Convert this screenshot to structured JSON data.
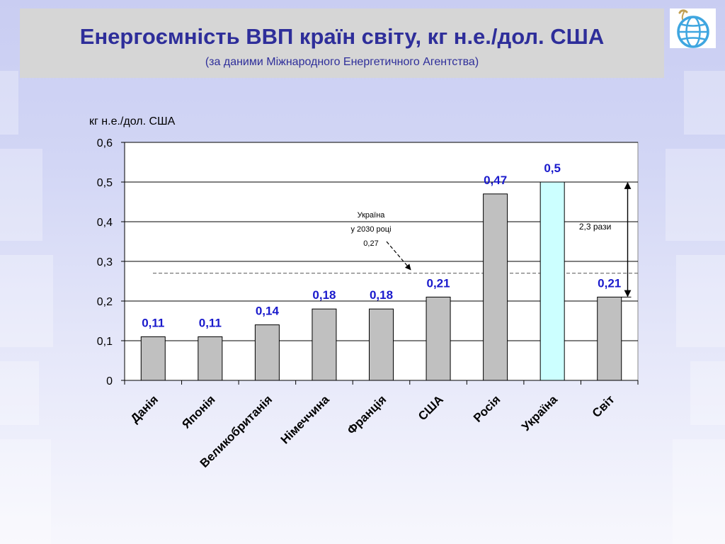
{
  "slide": {
    "title": "Енергоємність ВВП країн світу, кг н.е./дол. США",
    "subtitle": "(за даними Міжнародного Енергетичного Агентства)"
  },
  "logo": {
    "icon": "globe-icon",
    "colors": {
      "globe": "#3fa6e0",
      "leaf": "#c2a052"
    }
  },
  "chart_data": {
    "type": "bar",
    "title": "",
    "ylabel": "кг н.е./дол. США",
    "xlabel": "",
    "categories": [
      "Данія",
      "Японія",
      "Великобританія",
      "Німеччина",
      "Франція",
      "США",
      "Росія",
      "Україна",
      "Світ"
    ],
    "values": [
      0.11,
      0.11,
      0.14,
      0.18,
      0.18,
      0.21,
      0.47,
      0.5,
      0.21
    ],
    "data_labels": [
      "0,11",
      "0,11",
      "0,14",
      "0,18",
      "0,18",
      "0,21",
      "0,47",
      "0,5",
      "0,21"
    ],
    "ylim": [
      0,
      0.6
    ],
    "yticks": [
      0,
      0.1,
      0.2,
      0.3,
      0.4,
      0.5,
      0.6
    ],
    "ytick_labels": [
      "0",
      "0,1",
      "0,2",
      "0,3",
      "0,4",
      "0,5",
      "0,6"
    ],
    "grid": true,
    "legend": "none",
    "highlight_category": "Україна",
    "colors": {
      "bar": "#c0c0c0",
      "highlight_bar": "#ccffff",
      "data_label": "#1a1acc"
    },
    "reference_line": {
      "value": 0.27,
      "label_lines": [
        "Україна",
        "у 2030 році",
        "0,27"
      ],
      "style": "dashed"
    },
    "ratio_annotation": {
      "label": "2,3 рази",
      "from_value": 0.5,
      "to_value": 0.21
    }
  }
}
